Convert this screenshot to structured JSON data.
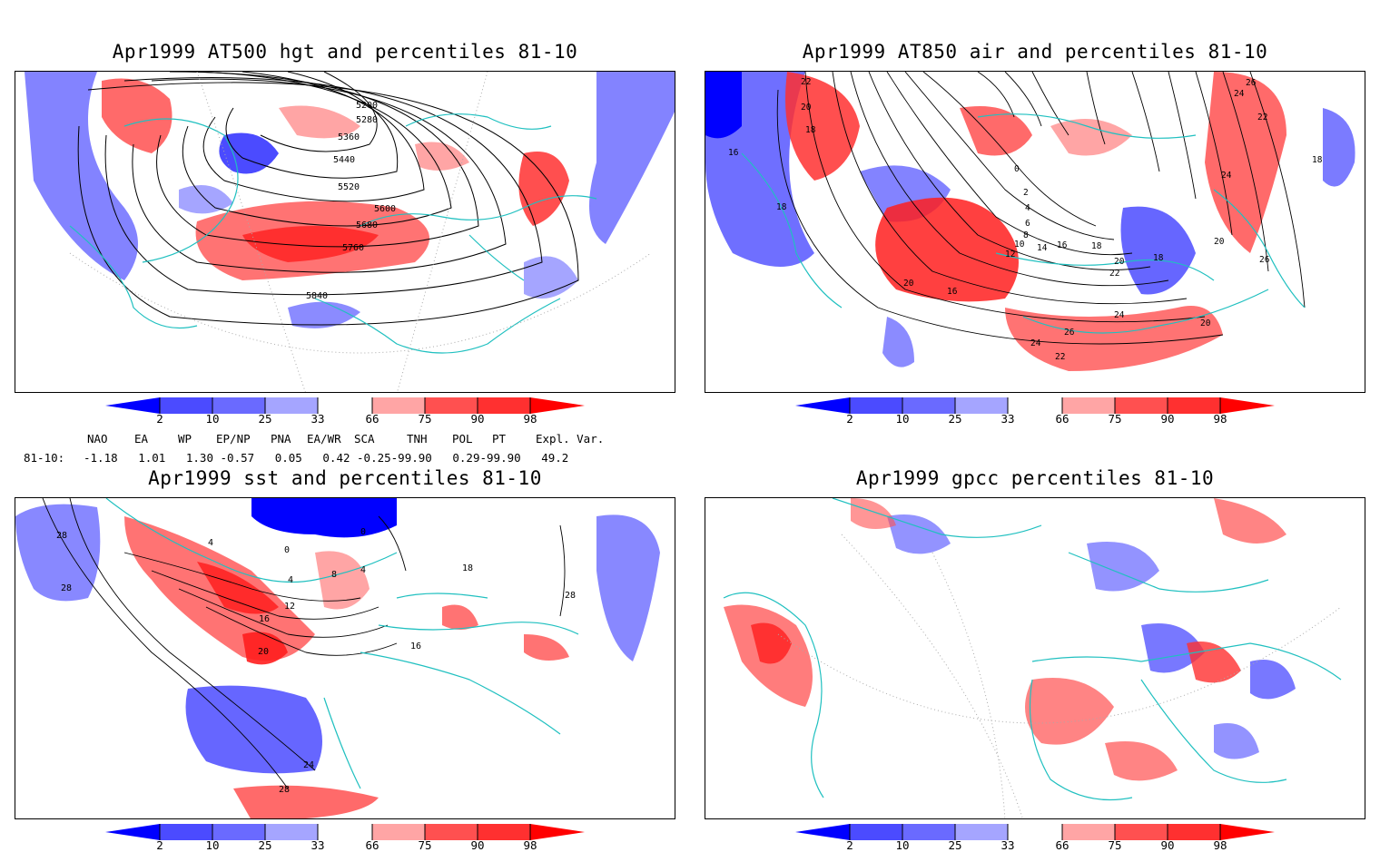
{
  "panels": [
    {
      "id": "p1",
      "title": "Apr1999 AT500 hgt and percentiles 81-10",
      "contour_labels": [
        "5200",
        "5280",
        "5360",
        "5440",
        "5520",
        "5600",
        "5680",
        "5760",
        "5840"
      ]
    },
    {
      "id": "p2",
      "title": "Apr1999 AT850 air and percentiles 81-10",
      "contour_labels": [
        "22",
        "20",
        "18",
        "16",
        "18",
        "26",
        "24",
        "22",
        "24",
        "18",
        "0",
        "2",
        "4",
        "6",
        "8",
        "10",
        "12",
        "14",
        "16",
        "18",
        "20",
        "22",
        "24",
        "26",
        "24",
        "22",
        "20",
        "16",
        "18",
        "20",
        "26",
        "20"
      ]
    },
    {
      "id": "p3",
      "title": "Apr1999 sst and percentiles 81-10",
      "contour_labels": [
        "28",
        "28",
        "4",
        "0",
        "4",
        "8",
        "4",
        "0",
        "12",
        "16",
        "20",
        "16",
        "18",
        "28",
        "24",
        "28"
      ]
    },
    {
      "id": "p4",
      "title": "Apr1999 gpcc percentiles 81-10",
      "contour_labels": []
    }
  ],
  "colorbar": {
    "labels": [
      "2",
      "10",
      "25",
      "33",
      "66",
      "75",
      "90",
      "98"
    ],
    "colors": {
      "blue_dark": "#0000ff",
      "blue_mid": "#4b4bff",
      "blue_light": "#a5a5ff",
      "white": "#ffffff",
      "red_light": "#ffa5a5",
      "red_mid": "#ff5050",
      "red_dark": "#ff1e1e",
      "red_max": "#ff0000"
    }
  },
  "indices": {
    "headers": [
      "NAO",
      "EA",
      "WP",
      "EP/NP",
      "PNA",
      "EA/WR",
      "SCA",
      "TNH",
      "POL",
      "PT",
      "Expl. Var."
    ],
    "row_label": "81-10:",
    "values_text": "-1.18   1.01   1.30 -0.57   0.05   0.42 -0.25-99.90   0.29-99.90   49.2"
  },
  "colors": {
    "coast": "#20c0c0",
    "contour": "#000000"
  }
}
